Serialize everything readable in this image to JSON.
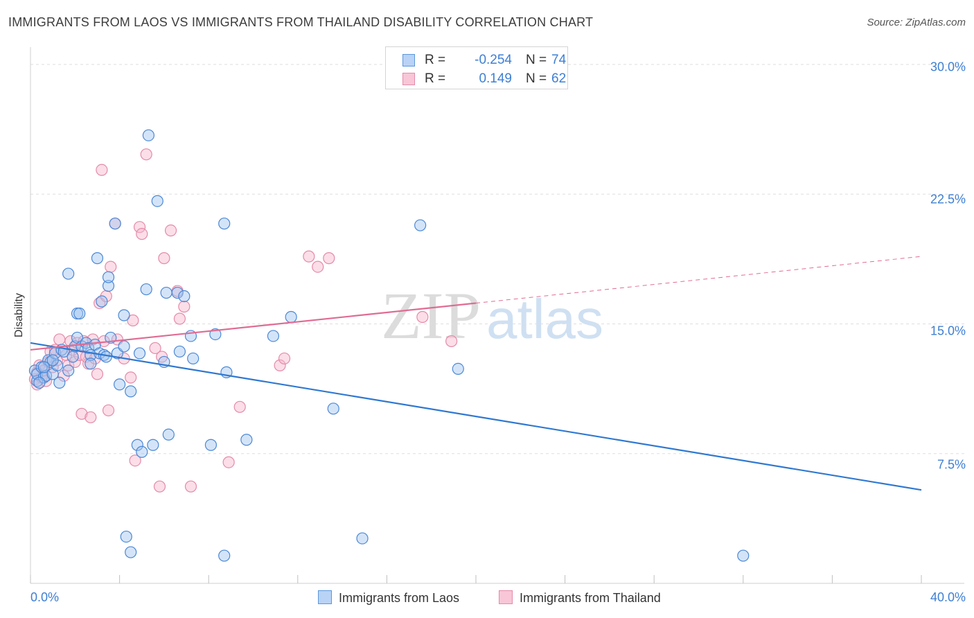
{
  "header": {
    "title": "IMMIGRANTS FROM LAOS VS IMMIGRANTS FROM THAILAND DISABILITY CORRELATION CHART",
    "source": "Source: ZipAtlas.com"
  },
  "watermark": {
    "zip": "ZIP",
    "atlas": "atlas"
  },
  "legend": {
    "rows": [
      {
        "r_label": "R =",
        "r_value": "-0.254",
        "n_label": "N =",
        "n_value": "74",
        "fill": "#b8d3f5",
        "stroke": "#5b97db"
      },
      {
        "r_label": "R =",
        "r_value": "0.149",
        "n_label": "N =",
        "n_value": "62",
        "fill": "#f8c6d6",
        "stroke": "#e58aa9"
      }
    ]
  },
  "bottom_legend": {
    "series1": "Immigrants from Laos",
    "series2": "Immigrants from Thailand"
  },
  "colors": {
    "laos_fill": "rgba(160,196,240,0.45)",
    "laos_stroke": "#4a88d6",
    "laos_line": "#2f78d0",
    "thai_fill": "rgba(246,182,204,0.45)",
    "thai_stroke": "#e48aa9",
    "thai_line": "#e06b93",
    "grid": "#dedede",
    "tick_text": "#3d7fd3"
  },
  "chart_data": {
    "type": "scatter",
    "title": "IMMIGRANTS FROM LAOS VS IMMIGRANTS FROM THAILAND DISABILITY CORRELATION CHART",
    "xlabel": "",
    "ylabel": "Disability",
    "xlim": [
      0,
      40
    ],
    "ylim": [
      0,
      31
    ],
    "x_tick_labels": [
      {
        "value": 0,
        "label": "0.0%"
      },
      {
        "value": 40,
        "label": "40.0%"
      }
    ],
    "y_ticks": [
      {
        "value": 7.5,
        "label": "7.5%"
      },
      {
        "value": 15.0,
        "label": "15.0%"
      },
      {
        "value": 22.5,
        "label": "22.5%"
      },
      {
        "value": 30.0,
        "label": "30.0%"
      }
    ],
    "legend_position": "top-center",
    "series": [
      {
        "name": "Immigrants from Laos",
        "r": -0.254,
        "n": 74,
        "trend": {
          "x": [
            0,
            40
          ],
          "y": [
            13.9,
            5.4
          ],
          "dashed_from": null
        },
        "points": [
          [
            0.2,
            12.3
          ],
          [
            0.3,
            11.7
          ],
          [
            0.3,
            12.1
          ],
          [
            0.5,
            12.5
          ],
          [
            0.6,
            11.9
          ],
          [
            0.7,
            12.0
          ],
          [
            0.8,
            12.9
          ],
          [
            0.9,
            12.8
          ],
          [
            1.0,
            12.1
          ],
          [
            1.1,
            13.3
          ],
          [
            1.2,
            12.6
          ],
          [
            1.3,
            11.6
          ],
          [
            1.4,
            13.5
          ],
          [
            1.5,
            13.4
          ],
          [
            1.7,
            12.3
          ],
          [
            1.7,
            17.9
          ],
          [
            1.9,
            13.1
          ],
          [
            2.0,
            13.7
          ],
          [
            2.1,
            14.2
          ],
          [
            2.1,
            15.6
          ],
          [
            2.2,
            15.6
          ],
          [
            2.3,
            13.7
          ],
          [
            2.5,
            13.9
          ],
          [
            2.6,
            13.6
          ],
          [
            2.7,
            13.2
          ],
          [
            2.7,
            12.7
          ],
          [
            2.9,
            13.8
          ],
          [
            3.0,
            18.8
          ],
          [
            3.1,
            13.3
          ],
          [
            3.2,
            16.3
          ],
          [
            3.3,
            13.2
          ],
          [
            3.4,
            13.1
          ],
          [
            3.5,
            17.2
          ],
          [
            3.5,
            17.7
          ],
          [
            3.6,
            14.2
          ],
          [
            3.8,
            20.8
          ],
          [
            3.9,
            13.3
          ],
          [
            4.0,
            11.5
          ],
          [
            4.2,
            13.7
          ],
          [
            4.2,
            15.5
          ],
          [
            4.5,
            11.1
          ],
          [
            4.8,
            8.0
          ],
          [
            4.9,
            13.3
          ],
          [
            5.0,
            7.6
          ],
          [
            5.2,
            17.0
          ],
          [
            5.3,
            25.9
          ],
          [
            5.5,
            8.0
          ],
          [
            5.7,
            22.1
          ],
          [
            6.0,
            12.8
          ],
          [
            6.1,
            16.8
          ],
          [
            6.2,
            8.6
          ],
          [
            6.6,
            16.8
          ],
          [
            6.7,
            13.4
          ],
          [
            6.9,
            16.6
          ],
          [
            7.2,
            14.3
          ],
          [
            7.3,
            13.0
          ],
          [
            8.1,
            8.0
          ],
          [
            8.3,
            14.4
          ],
          [
            8.7,
            20.8
          ],
          [
            8.8,
            12.2
          ],
          [
            9.7,
            8.3
          ],
          [
            10.9,
            14.3
          ],
          [
            11.7,
            15.4
          ],
          [
            13.6,
            10.1
          ],
          [
            17.5,
            20.7
          ],
          [
            19.2,
            12.4
          ],
          [
            4.3,
            2.7
          ],
          [
            4.5,
            1.8
          ],
          [
            8.7,
            1.6
          ],
          [
            14.9,
            2.6
          ],
          [
            32.0,
            1.6
          ],
          [
            0.4,
            11.6
          ],
          [
            0.6,
            12.5
          ],
          [
            1.0,
            12.9
          ]
        ]
      },
      {
        "name": "Immigrants from Thailand",
        "r": 0.149,
        "n": 62,
        "trend": {
          "x": [
            0,
            40
          ],
          "y": [
            13.5,
            18.9
          ],
          "dashed_from": 20
        },
        "points": [
          [
            0.2,
            11.8
          ],
          [
            0.3,
            12.2
          ],
          [
            0.3,
            11.5
          ],
          [
            0.4,
            12.6
          ],
          [
            0.5,
            11.9
          ],
          [
            0.6,
            12.3
          ],
          [
            0.7,
            11.7
          ],
          [
            0.8,
            12.8
          ],
          [
            0.9,
            13.4
          ],
          [
            1.0,
            12.5
          ],
          [
            1.1,
            13.5
          ],
          [
            1.2,
            12.9
          ],
          [
            1.3,
            14.1
          ],
          [
            1.5,
            12.0
          ],
          [
            1.6,
            13.2
          ],
          [
            1.7,
            12.6
          ],
          [
            1.8,
            14.0
          ],
          [
            1.9,
            13.5
          ],
          [
            2.0,
            12.8
          ],
          [
            2.1,
            13.9
          ],
          [
            2.2,
            13.2
          ],
          [
            2.3,
            9.8
          ],
          [
            2.4,
            14.0
          ],
          [
            2.5,
            13.1
          ],
          [
            2.6,
            12.7
          ],
          [
            2.7,
            9.6
          ],
          [
            2.8,
            14.1
          ],
          [
            2.9,
            13.0
          ],
          [
            3.0,
            12.1
          ],
          [
            3.1,
            16.2
          ],
          [
            3.2,
            23.9
          ],
          [
            3.3,
            14.0
          ],
          [
            3.4,
            16.6
          ],
          [
            3.5,
            10.0
          ],
          [
            3.6,
            18.3
          ],
          [
            3.8,
            20.8
          ],
          [
            3.9,
            14.1
          ],
          [
            4.2,
            13.0
          ],
          [
            4.5,
            11.9
          ],
          [
            4.6,
            15.2
          ],
          [
            4.7,
            7.1
          ],
          [
            4.9,
            20.6
          ],
          [
            5.0,
            20.2
          ],
          [
            5.2,
            24.8
          ],
          [
            5.6,
            13.6
          ],
          [
            5.8,
            5.6
          ],
          [
            5.9,
            13.1
          ],
          [
            6.0,
            18.8
          ],
          [
            6.3,
            20.4
          ],
          [
            6.6,
            16.9
          ],
          [
            6.7,
            15.3
          ],
          [
            6.9,
            16.0
          ],
          [
            7.2,
            5.6
          ],
          [
            8.9,
            7.0
          ],
          [
            9.4,
            10.2
          ],
          [
            11.2,
            12.6
          ],
          [
            11.4,
            13.0
          ],
          [
            12.5,
            18.9
          ],
          [
            12.9,
            18.3
          ],
          [
            13.4,
            18.8
          ],
          [
            17.6,
            15.4
          ],
          [
            18.9,
            14.0
          ]
        ]
      }
    ]
  }
}
